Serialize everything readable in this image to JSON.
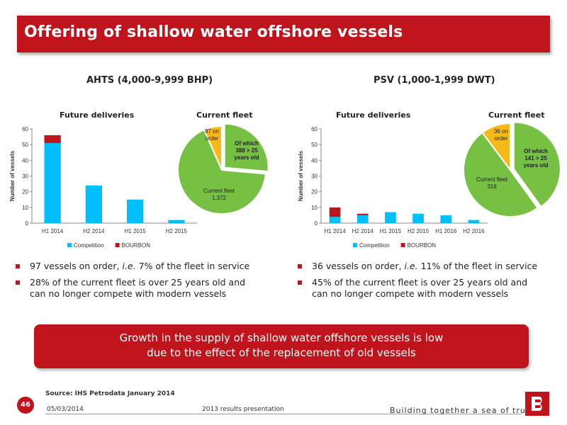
{
  "title": "Offering of shallow water offshore vessels",
  "left": {
    "section_title": "AHTS (4,000-9,999 BHP)",
    "future_label": "Future deliveries",
    "current_label": "Current fleet",
    "bullets": [
      {
        "pre": "97 vessels on order, ",
        "em": "i.e.",
        "post": " 7% of the fleet in service"
      },
      {
        "pre": "28% of the current fleet is over 25 years old and can no longer compete with modern vessels",
        "em": "",
        "post": ""
      }
    ]
  },
  "right": {
    "section_title": "PSV (1,000-1,999 DWT)",
    "future_label": "Future deliveries",
    "current_label": "Current fleet",
    "bullets": [
      {
        "pre": "36 vessels on order, ",
        "em": "i.e.",
        "post": " 11% of the fleet in service"
      },
      {
        "pre": "45% of the current fleet is over 25 years old and can no longer compete with modern vessels",
        "em": "",
        "post": ""
      }
    ]
  },
  "banner": {
    "line1": "Growth in the supply of shallow water offshore vessels is low",
    "line2": "due to the effect of the replacement of old vessels"
  },
  "footer": {
    "source": "Source: IHS Petrodata January 2014",
    "page": "46",
    "date": "05/03/2014",
    "presentation": "2013 results presentation",
    "tagline": "Building together a sea of trust"
  },
  "colors": {
    "red": "#c0141c",
    "competition": "#00bfff",
    "bourbon": "#c0141c",
    "pie_green": "#76c043",
    "pie_yellow": "#f7b81a"
  },
  "chart_data": [
    {
      "type": "bar",
      "stacked": true,
      "ylabel": "Number of vessels",
      "ylim": [
        0,
        60
      ],
      "yticks": [
        0,
        10,
        20,
        30,
        40,
        50,
        60
      ],
      "categories": [
        "H1 2014",
        "H2 2014",
        "H1 2015",
        "H2 2015"
      ],
      "series": [
        {
          "name": "Competition",
          "values": [
            51,
            24,
            15,
            2
          ]
        },
        {
          "name": "BOURBON",
          "values": [
            5,
            0,
            0,
            0
          ]
        }
      ],
      "legend": "bottom"
    },
    {
      "type": "pie",
      "slices": [
        {
          "label": "Of which 388 > 25 years old",
          "value": 388,
          "exploded": true
        },
        {
          "label": "Current fleet 1,372",
          "value": 984
        },
        {
          "label": "97 on order",
          "value": 97
        }
      ]
    },
    {
      "type": "bar",
      "stacked": true,
      "ylabel": "Number of vessels",
      "ylim": [
        0,
        60
      ],
      "yticks": [
        0,
        10,
        20,
        30,
        40,
        50,
        60
      ],
      "categories": [
        "H1 2014",
        "H2 2014",
        "H1 2015",
        "H2 2015",
        "H1 2016",
        "H2 2016"
      ],
      "series": [
        {
          "name": "Competition",
          "values": [
            4,
            5,
            7,
            6,
            5,
            2
          ]
        },
        {
          "name": "BOURBON",
          "values": [
            6,
            1,
            0,
            0,
            0,
            0
          ]
        }
      ],
      "legend": "bottom"
    },
    {
      "type": "pie",
      "slices": [
        {
          "label": "Of which 141 > 25 years old",
          "value": 141,
          "exploded": true
        },
        {
          "label": "Current fleet 316",
          "value": 175
        },
        {
          "label": "36 on order",
          "value": 36
        }
      ]
    }
  ]
}
